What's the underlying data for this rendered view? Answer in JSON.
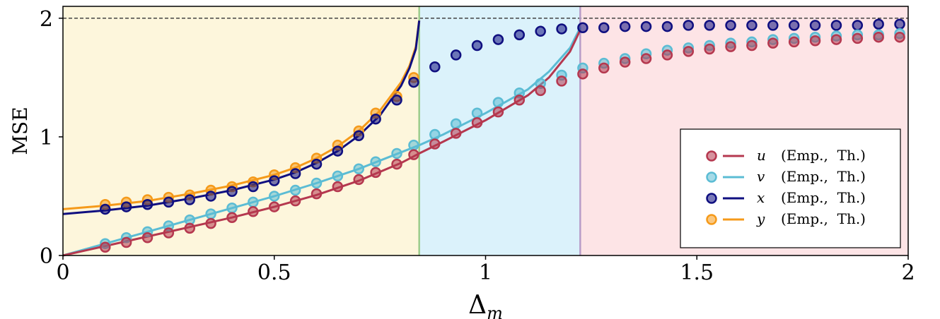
{
  "chart_data": {
    "type": "scatter",
    "xlabel": "Δ",
    "xlabel_sub": "m",
    "ylabel": "MSE",
    "xlim": [
      0,
      2
    ],
    "ylim": [
      0,
      2.1
    ],
    "x_ticks": [
      {
        "value": 0,
        "label": "0"
      },
      {
        "value": 0.5,
        "label": "0.5"
      },
      {
        "value": 1,
        "label": "1"
      },
      {
        "value": 1.5,
        "label": "1.5"
      },
      {
        "value": 2,
        "label": "2"
      }
    ],
    "y_ticks": [
      {
        "value": 0,
        "label": "0"
      },
      {
        "value": 1,
        "label": "1"
      },
      {
        "value": 2,
        "label": "2"
      }
    ],
    "reference_line": {
      "y": 2,
      "style": "dashed",
      "color": "#333333"
    },
    "regions": [
      {
        "x": [
          0,
          0.843
        ],
        "color": "#fdf6dc"
      },
      {
        "x": [
          0.843,
          1.224
        ],
        "color": "#dbf2fb"
      },
      {
        "x": [
          1.224,
          2
        ],
        "color": "#fde4e6"
      }
    ],
    "vlines": [
      {
        "x": 0.843,
        "color": "#9ccc8c"
      },
      {
        "x": 1.224,
        "color": "#b89cc8"
      }
    ],
    "colors": {
      "u": "#b5384f",
      "v": "#5bbcd4",
      "x": "#0f0f80",
      "y": "#f59a1a"
    },
    "legend": {
      "position": "lower-right",
      "entries": [
        {
          "key": "u",
          "symbol": "u",
          "text": "(Emp.,  Th.)"
        },
        {
          "key": "v",
          "symbol": "v",
          "text": "(Emp.,  Th.)"
        },
        {
          "key": "x",
          "symbol": "x",
          "text": "(Emp.,  Th.)"
        },
        {
          "key": "y",
          "symbol": "y",
          "text": "(Emp.,  Th.)"
        }
      ]
    },
    "series": [
      {
        "key": "y",
        "x": [
          0.1,
          0.15,
          0.2,
          0.25,
          0.3,
          0.35,
          0.4,
          0.45,
          0.5,
          0.55,
          0.6,
          0.65,
          0.7,
          0.74,
          0.79,
          0.83
        ],
        "empirical": [
          0.43,
          0.45,
          0.47,
          0.49,
          0.51,
          0.55,
          0.58,
          0.62,
          0.68,
          0.74,
          0.82,
          0.93,
          1.05,
          1.2,
          1.34,
          1.5
        ],
        "theory": {
          "x": [
            0,
            0.1,
            0.2,
            0.3,
            0.4,
            0.5,
            0.55,
            0.6,
            0.65,
            0.7,
            0.75,
            0.8,
            0.82,
            0.835,
            0.843
          ],
          "y": [
            0.39,
            0.42,
            0.46,
            0.52,
            0.59,
            0.68,
            0.74,
            0.82,
            0.92,
            1.05,
            1.22,
            1.46,
            1.6,
            1.76,
            1.98
          ]
        }
      },
      {
        "key": "x",
        "x": [
          0.1,
          0.15,
          0.2,
          0.25,
          0.3,
          0.35,
          0.4,
          0.45,
          0.5,
          0.55,
          0.6,
          0.65,
          0.7,
          0.74,
          0.79,
          0.83,
          0.88,
          0.93,
          0.98,
          1.03,
          1.08,
          1.13,
          1.18,
          1.23,
          1.28,
          1.33,
          1.38,
          1.43,
          1.48,
          1.53,
          1.58,
          1.63,
          1.68,
          1.73,
          1.78,
          1.83,
          1.88,
          1.93,
          1.98
        ],
        "empirical": [
          0.39,
          0.41,
          0.43,
          0.45,
          0.47,
          0.5,
          0.54,
          0.58,
          0.63,
          0.69,
          0.77,
          0.88,
          1.01,
          1.15,
          1.31,
          1.46,
          1.59,
          1.69,
          1.77,
          1.82,
          1.86,
          1.89,
          1.91,
          1.92,
          1.92,
          1.93,
          1.93,
          1.93,
          1.94,
          1.94,
          1.94,
          1.94,
          1.94,
          1.94,
          1.94,
          1.94,
          1.94,
          1.95,
          1.95
        ],
        "theory": {
          "x": [
            0,
            0.1,
            0.2,
            0.3,
            0.4,
            0.5,
            0.55,
            0.6,
            0.65,
            0.7,
            0.75,
            0.8,
            0.82,
            0.835,
            0.843
          ],
          "y": [
            0.35,
            0.38,
            0.42,
            0.48,
            0.55,
            0.64,
            0.7,
            0.78,
            0.88,
            1.01,
            1.18,
            1.43,
            1.58,
            1.74,
            1.98
          ]
        }
      },
      {
        "key": "v",
        "x": [
          0.1,
          0.15,
          0.2,
          0.25,
          0.3,
          0.35,
          0.4,
          0.45,
          0.5,
          0.55,
          0.6,
          0.65,
          0.7,
          0.74,
          0.79,
          0.83,
          0.88,
          0.93,
          0.98,
          1.03,
          1.08,
          1.13,
          1.18,
          1.23,
          1.28,
          1.33,
          1.38,
          1.43,
          1.48,
          1.53,
          1.58,
          1.63,
          1.68,
          1.73,
          1.78,
          1.83,
          1.88,
          1.93,
          1.98
        ],
        "empirical": [
          0.1,
          0.15,
          0.2,
          0.25,
          0.3,
          0.35,
          0.4,
          0.45,
          0.5,
          0.55,
          0.61,
          0.67,
          0.73,
          0.79,
          0.86,
          0.93,
          1.02,
          1.11,
          1.2,
          1.29,
          1.37,
          1.45,
          1.52,
          1.58,
          1.62,
          1.66,
          1.7,
          1.73,
          1.75,
          1.77,
          1.79,
          1.8,
          1.82,
          1.83,
          1.84,
          1.85,
          1.86,
          1.86,
          1.87
        ],
        "theory": {
          "x": [
            0,
            0.1,
            0.2,
            0.3,
            0.4,
            0.5,
            0.6,
            0.7,
            0.8,
            0.843,
            0.9,
            1.0,
            1.1,
            1.15,
            1.2,
            1.224
          ],
          "y": [
            0,
            0.1,
            0.2,
            0.3,
            0.4,
            0.5,
            0.61,
            0.73,
            0.87,
            0.93,
            1.02,
            1.2,
            1.4,
            1.55,
            1.75,
            1.92
          ]
        }
      },
      {
        "key": "u",
        "x": [
          0.1,
          0.15,
          0.2,
          0.25,
          0.3,
          0.35,
          0.4,
          0.45,
          0.5,
          0.55,
          0.6,
          0.65,
          0.7,
          0.74,
          0.79,
          0.83,
          0.88,
          0.93,
          0.98,
          1.03,
          1.08,
          1.13,
          1.18,
          1.23,
          1.28,
          1.33,
          1.38,
          1.43,
          1.48,
          1.53,
          1.58,
          1.63,
          1.68,
          1.73,
          1.78,
          1.83,
          1.88,
          1.93,
          1.98
        ],
        "empirical": [
          0.07,
          0.11,
          0.15,
          0.19,
          0.23,
          0.27,
          0.32,
          0.37,
          0.41,
          0.46,
          0.52,
          0.58,
          0.64,
          0.7,
          0.77,
          0.85,
          0.94,
          1.03,
          1.12,
          1.21,
          1.31,
          1.39,
          1.47,
          1.53,
          1.58,
          1.63,
          1.66,
          1.69,
          1.72,
          1.74,
          1.76,
          1.77,
          1.79,
          1.8,
          1.81,
          1.82,
          1.83,
          1.84,
          1.84
        ],
        "theory": {
          "x": [
            0,
            0.1,
            0.2,
            0.3,
            0.4,
            0.5,
            0.6,
            0.7,
            0.8,
            0.843,
            0.9,
            1.0,
            1.1,
            1.15,
            1.2,
            1.224
          ],
          "y": [
            0,
            0.08,
            0.16,
            0.24,
            0.32,
            0.41,
            0.51,
            0.63,
            0.78,
            0.86,
            0.96,
            1.14,
            1.35,
            1.5,
            1.72,
            1.9
          ]
        }
      }
    ]
  }
}
